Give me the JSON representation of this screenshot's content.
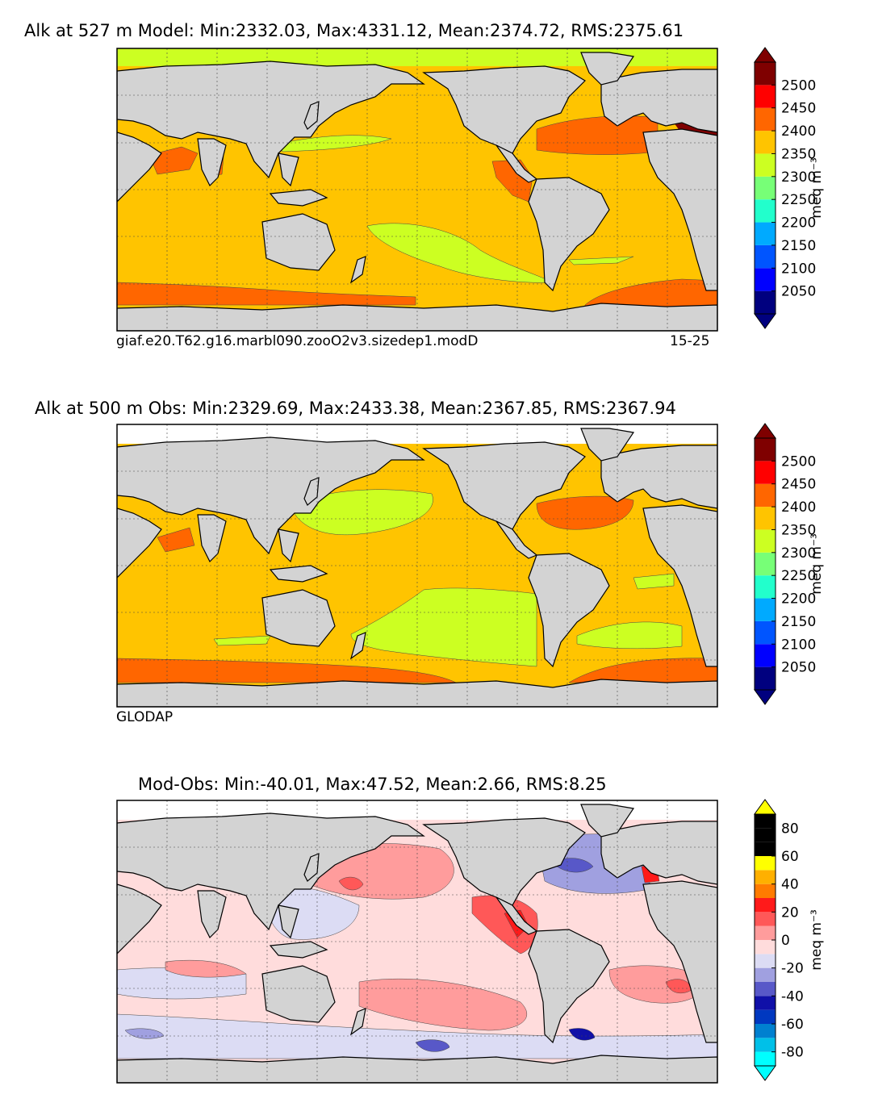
{
  "panels": [
    {
      "title": "Alk at 527 m Model: Min:2332.03, Max:4331.12, Mean:2374.72, RMS:2375.61",
      "caption_left": "giaf.e20.T62.g16.marbl090.zooO2v3.sizedep1.modD",
      "caption_right": "15-25"
    },
    {
      "title": "Alk at 500 m Obs: Min:2329.69, Max:2433.38, Mean:2367.85, RMS:2367.94",
      "caption_left": "GLODAP",
      "caption_right": ""
    },
    {
      "title": "Mod-Obs: Min:-40.01, Max:47.52, Mean:2.66, RMS:8.25",
      "caption_left": "",
      "caption_right": ""
    }
  ],
  "colors": {
    "land": "#d3d3d3",
    "ocean_missing": "#ffffff",
    "abs_scale": [
      "#00007f",
      "#0000ff",
      "#0055ff",
      "#00aaff",
      "#22ffcc",
      "#77ff77",
      "#ccff22",
      "#ffc400",
      "#ff6600",
      "#ff0000",
      "#7f0000"
    ],
    "diff_scale": [
      "#00ffff",
      "#00c0e8",
      "#0080d0",
      "#0038c0",
      "#1010a8",
      "#5858c8",
      "#a0a0e0",
      "#dcdcf4",
      "#ffdcdc",
      "#ff9c9c",
      "#ff5858",
      "#ff1a1a",
      "#ff7b00",
      "#ffb000",
      "#ffff00"
    ]
  },
  "chart_data": [
    {
      "type": "heatmap",
      "title": "Alk at 527 m Model: Min:2332.03, Max:4331.12, Mean:2374.72, RMS:2375.61",
      "stats": {
        "min": 2332.03,
        "max": 4331.12,
        "mean": 2374.72,
        "rms": 2375.61
      },
      "variable": "Alk",
      "depth_m": 527,
      "source": "Model",
      "colorbar": {
        "label": "meq m⁻³",
        "boundaries": [
          2000,
          2050,
          2100,
          2150,
          2200,
          2250,
          2300,
          2350,
          2400,
          2450,
          2500,
          2550
        ],
        "tick_labels": [
          "2050",
          "2100",
          "2150",
          "2200",
          "2250",
          "2300",
          "2350",
          "2400",
          "2450",
          "2500"
        ],
        "extend": "both"
      },
      "regions": [
        {
          "name": "background ocean",
          "band": "2350-2400"
        },
        {
          "name": "Arctic",
          "band": "2300-2350"
        },
        {
          "name": "North Atlantic",
          "band": "2400-2450"
        },
        {
          "name": "Mediterranean",
          "band": "2500+"
        },
        {
          "name": "Southern Ocean",
          "band": "2400-2450"
        },
        {
          "name": "Arabian Sea / Bay of Bengal",
          "band": "2400-2450"
        },
        {
          "name": "eastern tropical Pacific",
          "band": "2400-2450"
        },
        {
          "name": "South Pacific subtropical gyre",
          "band": "2300-2350"
        }
      ]
    },
    {
      "type": "heatmap",
      "title": "Alk at 500 m Obs: Min:2329.69, Max:2433.38, Mean:2367.85, RMS:2367.94",
      "stats": {
        "min": 2329.69,
        "max": 2433.38,
        "mean": 2367.85,
        "rms": 2367.94
      },
      "variable": "Alk",
      "depth_m": 500,
      "source": "GLODAP",
      "colorbar": {
        "label": "meq m⁻³",
        "boundaries": [
          2000,
          2050,
          2100,
          2150,
          2200,
          2250,
          2300,
          2350,
          2400,
          2450,
          2500,
          2550
        ],
        "tick_labels": [
          "2050",
          "2100",
          "2150",
          "2200",
          "2250",
          "2300",
          "2350",
          "2400",
          "2450",
          "2500"
        ],
        "extend": "both"
      },
      "regions": [
        {
          "name": "background ocean",
          "band": "2350-2400"
        },
        {
          "name": "North Pacific",
          "band": "2300-2350"
        },
        {
          "name": "South Pacific subtropical gyre",
          "band": "2300-2350"
        },
        {
          "name": "North Atlantic",
          "band": "2400-2450"
        },
        {
          "name": "Southern Ocean",
          "band": "2400-2450"
        },
        {
          "name": "Arabian Sea",
          "band": "2400-2450"
        }
      ]
    },
    {
      "type": "heatmap",
      "title": "Mod-Obs: Min:-40.01, Max:47.52, Mean:2.66, RMS:8.25",
      "stats": {
        "min": -40.01,
        "max": 47.52,
        "mean": 2.66,
        "rms": 8.25
      },
      "source": "Model minus Obs",
      "colorbar": {
        "label": "meq m⁻³",
        "boundaries": [
          -90,
          -80,
          -70,
          -60,
          -50,
          -40,
          -30,
          -20,
          -10,
          0,
          10,
          20,
          30,
          40,
          50,
          60,
          70,
          80,
          90
        ],
        "tick_labels": [
          "-80",
          "-60",
          "-40",
          "-20",
          "0",
          "20",
          "40",
          "60",
          "80"
        ],
        "extend": "both"
      },
      "regions": [
        {
          "name": "North Pacific",
          "band": "0 to +30"
        },
        {
          "name": "eastern tropical Pacific",
          "band": "+20 to +40"
        },
        {
          "name": "North Atlantic subtropics",
          "band": "-30 to -10"
        },
        {
          "name": "Southern Ocean",
          "band": "-20 to 0"
        },
        {
          "name": "Indian Ocean",
          "band": "0 to +20"
        },
        {
          "name": "South Atlantic",
          "band": "0 to +30"
        }
      ]
    }
  ]
}
